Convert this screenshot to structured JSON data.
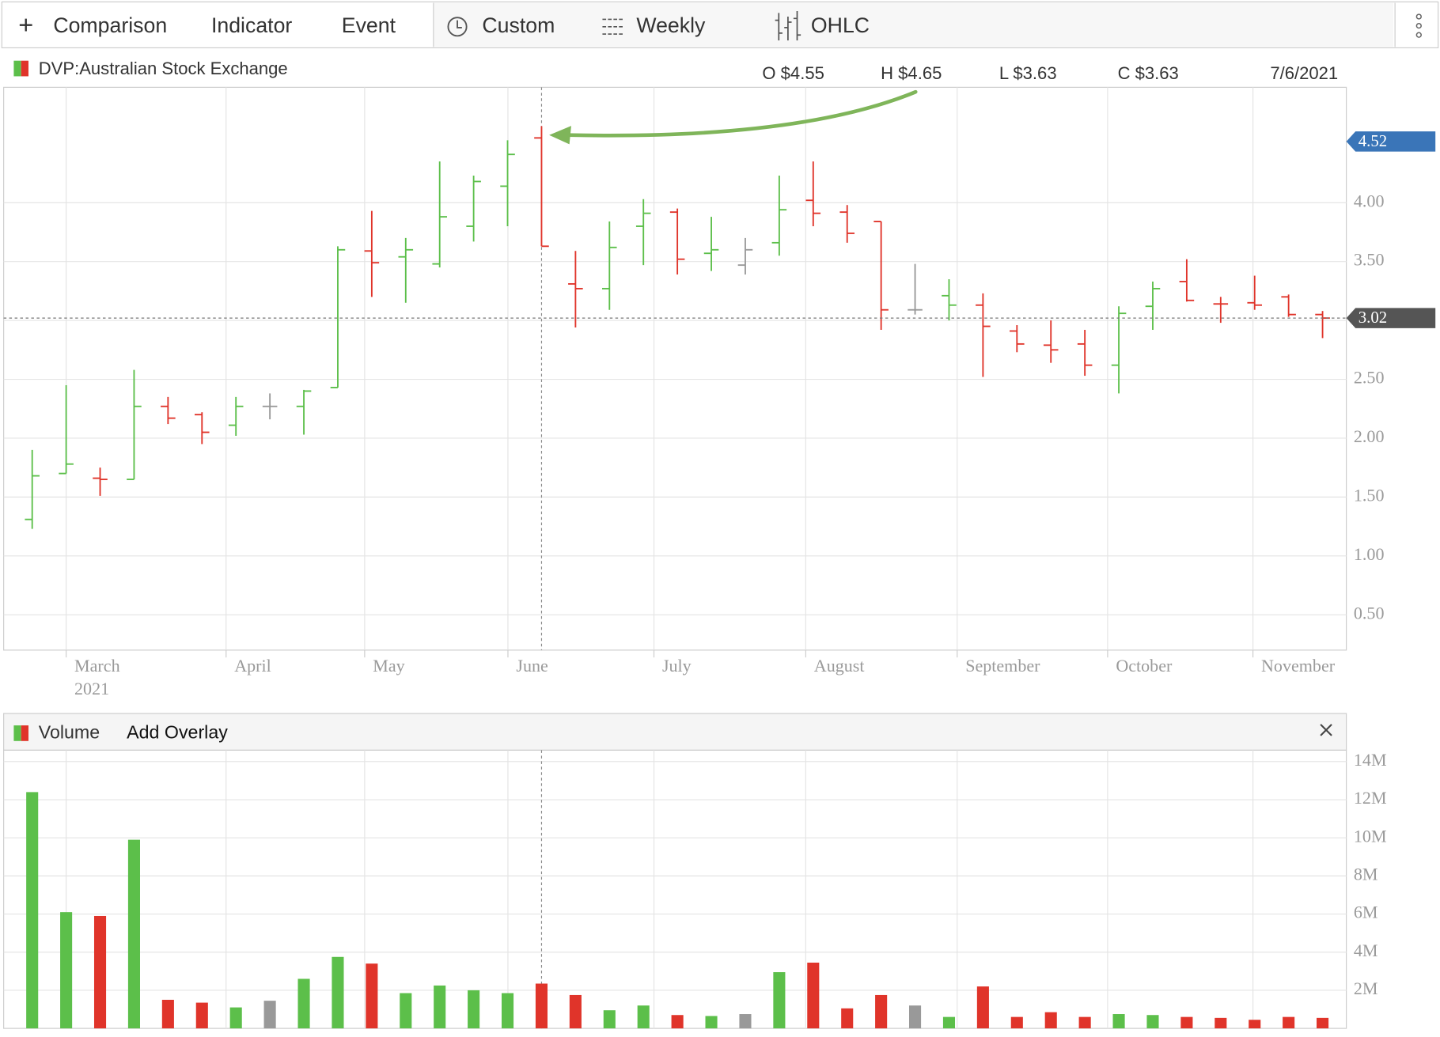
{
  "toolbar": {
    "items": [
      "Comparison",
      "Indicator",
      "Event",
      "Custom",
      "Weekly",
      "OHLC"
    ]
  },
  "chart_data": [
    {
      "type": "ohlc",
      "series": [
        {
          "name": "DVP:Australian Stock Exchange",
          "open": [
            1.31,
            1.7,
            1.66,
            1.65,
            2.27,
            2.2,
            2.11,
            2.27,
            2.27,
            2.43,
            3.59,
            3.54,
            3.48,
            3.8,
            4.14,
            4.55,
            3.31,
            3.27,
            3.8,
            3.92,
            3.57,
            3.47,
            3.66,
            4.02,
            3.92,
            3.84,
            3.09,
            3.21,
            3.13,
            2.91,
            2.79,
            2.8,
            2.62,
            3.12,
            3.33,
            3.14,
            3.15,
            3.2,
            3.05
          ],
          "high": [
            1.9,
            2.45,
            1.75,
            2.58,
            2.35,
            2.22,
            2.35,
            2.38,
            2.41,
            3.63,
            3.93,
            3.7,
            4.35,
            4.23,
            4.53,
            4.65,
            3.59,
            3.84,
            4.03,
            3.95,
            3.88,
            3.7,
            4.23,
            4.35,
            3.98,
            3.84,
            3.48,
            3.35,
            3.23,
            2.96,
            3.0,
            2.92,
            3.12,
            3.33,
            3.52,
            3.2,
            3.38,
            3.22,
            3.08
          ],
          "low": [
            1.23,
            1.7,
            1.51,
            1.65,
            2.12,
            1.95,
            2.02,
            2.16,
            2.03,
            2.43,
            3.2,
            3.15,
            3.45,
            3.67,
            3.8,
            3.63,
            2.94,
            3.09,
            3.47,
            3.39,
            3.42,
            3.39,
            3.55,
            3.8,
            3.66,
            2.92,
            3.05,
            3.0,
            2.52,
            2.73,
            2.64,
            2.53,
            2.38,
            2.92,
            3.16,
            2.98,
            3.09,
            3.03,
            2.85
          ],
          "close": [
            1.68,
            1.78,
            1.65,
            2.27,
            2.17,
            2.05,
            2.27,
            2.27,
            2.4,
            3.6,
            3.49,
            3.6,
            3.88,
            4.18,
            4.41,
            3.63,
            3.27,
            3.62,
            3.91,
            3.52,
            3.6,
            3.6,
            3.94,
            3.91,
            3.74,
            3.09,
            3.09,
            3.13,
            2.95,
            2.8,
            2.75,
            2.62,
            3.06,
            3.27,
            3.17,
            3.14,
            3.13,
            3.05,
            3.02
          ]
        }
      ],
      "categories": [
        null,
        null,
        null,
        null,
        null,
        null,
        null,
        null,
        null,
        null,
        null,
        null,
        null,
        null,
        null,
        null,
        null,
        null,
        null,
        null,
        null,
        null,
        null,
        null,
        null,
        null,
        null,
        null,
        null,
        null,
        null,
        null,
        null,
        null,
        null,
        null,
        null,
        null,
        null
      ],
      "up_color": "#5cbf4a",
      "down_color": "#e0342a",
      "flat_color": "#999999",
      "xlim": [
        -0.84,
        38.7
      ],
      "xticks": [
        {
          "value": 1.0,
          "label": "March"
        },
        {
          "value": 5.71,
          "label": "April"
        },
        {
          "value": 9.79,
          "label": "May"
        },
        {
          "value": 14.01,
          "label": "June"
        },
        {
          "value": 18.31,
          "label": "July"
        },
        {
          "value": 22.78,
          "label": "August"
        },
        {
          "value": 27.24,
          "label": "September"
        },
        {
          "value": 31.67,
          "label": "October"
        },
        {
          "value": 35.95,
          "label": "November"
        }
      ],
      "year_label": "2021",
      "ylim": [
        0.2,
        4.98
      ],
      "yticks": [
        {
          "value": 0.5,
          "label": "0.50"
        },
        {
          "value": 1,
          "label": "1.00"
        },
        {
          "value": 1.5,
          "label": "1.50"
        },
        {
          "value": 2,
          "label": "2.00"
        },
        {
          "value": 2.5,
          "label": "2.50"
        },
        {
          "value": 3,
          "label": "3.00"
        },
        {
          "value": 3.5,
          "label": "3.50"
        },
        {
          "value": 4,
          "label": "4.00"
        }
      ],
      "grid": true,
      "price_markers": [
        {
          "value": 4.52,
          "color": "#3a75b8"
        },
        {
          "value": 3.02,
          "color": "#555555"
        }
      ],
      "crosshair": 15,
      "readout": {
        "open": "O $4.55",
        "high": "H $4.65",
        "low": "L $3.63",
        "close": "C $3.63",
        "date": "7/6/2021"
      }
    },
    {
      "type": "bar",
      "series": [
        {
          "name": "Volume",
          "values": [
            12400000,
            6100000,
            5900000,
            9900000,
            1500000,
            1350000,
            1100000,
            1450000,
            2600000,
            3750000,
            3400000,
            1850000,
            2250000,
            2000000,
            1850000,
            2350000,
            1750000,
            950000,
            1200000,
            700000,
            650000,
            750000,
            2950000,
            3450000,
            1050000,
            1750000,
            1200000,
            600000,
            2200000,
            600000,
            850000,
            600000,
            750000,
            700000,
            600000,
            550000,
            450000,
            600000,
            550000
          ]
        }
      ],
      "overlay_button": "Add Overlay",
      "xlim": [
        -0.84,
        38.7
      ],
      "ylim": [
        0,
        14600000
      ],
      "yticks": [
        {
          "value": 2000000,
          "label": "2M"
        },
        {
          "value": 4000000,
          "label": "4M"
        },
        {
          "value": 6000000,
          "label": "6M"
        },
        {
          "value": 8000000,
          "label": "8M"
        },
        {
          "value": 10000000,
          "label": "10M"
        },
        {
          "value": 12000000,
          "label": "12M"
        },
        {
          "value": 14000000,
          "label": "14M"
        }
      ],
      "grid": true
    }
  ]
}
